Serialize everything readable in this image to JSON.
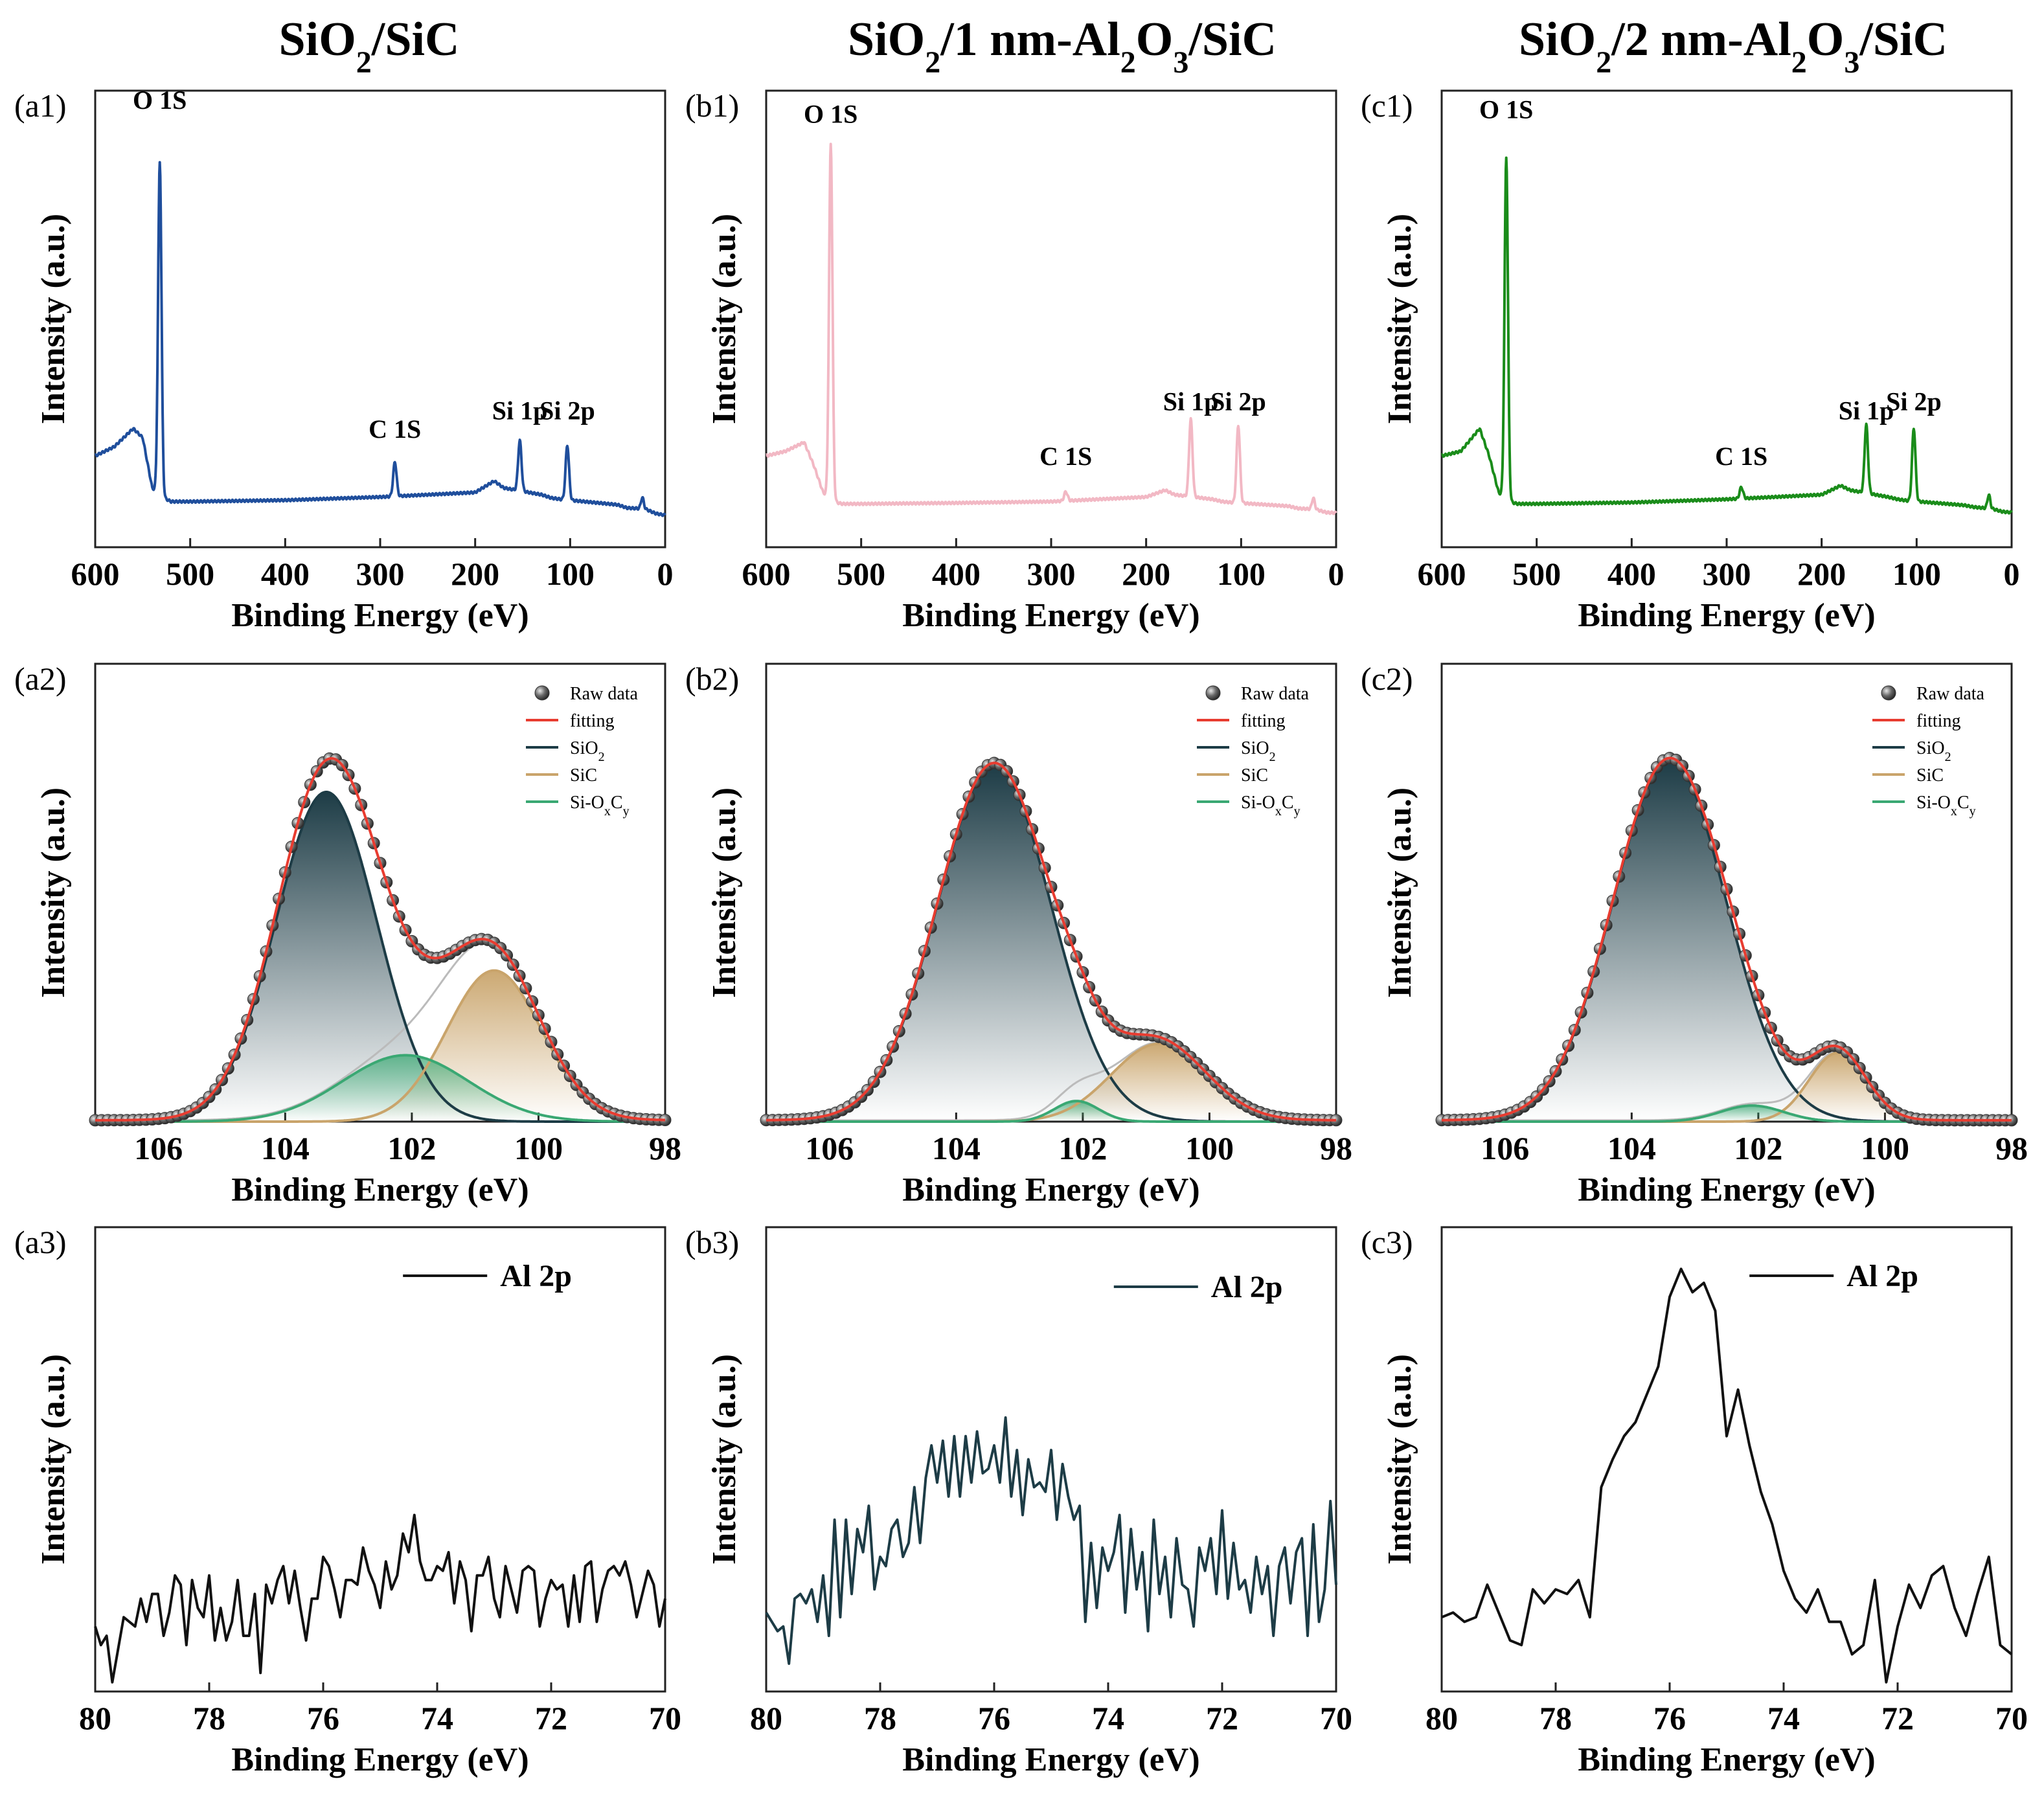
{
  "columns": [
    "SiO2/SiC",
    "SiO2/1 nm-Al2O3/SiC",
    "SiO2/2 nm-Al2O3/SiC"
  ],
  "column_titles_rich": [
    [
      [
        "SiO",
        ""
      ],
      [
        "2",
        "sub"
      ],
      [
        "/SiC",
        ""
      ]
    ],
    [
      [
        "SiO",
        ""
      ],
      [
        "2",
        "sub"
      ],
      [
        "/1 nm-Al",
        ""
      ],
      [
        "2",
        "sub"
      ],
      [
        "O",
        ""
      ],
      [
        "3",
        "sub"
      ],
      [
        "/SiC",
        ""
      ]
    ],
    [
      [
        "SiO",
        ""
      ],
      [
        "2",
        "sub"
      ],
      [
        "/2 nm-Al",
        ""
      ],
      [
        "2",
        "sub"
      ],
      [
        "O",
        ""
      ],
      [
        "3",
        "sub"
      ],
      [
        "/SiC",
        ""
      ]
    ]
  ],
  "colors": {
    "survey": [
      "#1f4e9c",
      "#f2b8c4",
      "#1a8c1a"
    ],
    "raw_marker": "#4a4a4a",
    "fitting": "#e83c30",
    "sio2": "#1d3c46",
    "sic": "#c9a46b",
    "sioxcy": "#3aa873",
    "al_line": [
      "#111111",
      "#1d3c46",
      "#111111"
    ]
  },
  "chart_data": [
    {
      "id": "a1",
      "panel_label": "(a1)",
      "type": "line",
      "row": 0,
      "col": 0,
      "xlabel": "Binding Energy (eV)",
      "ylabel": "Intensity (a.u.)",
      "xlim": [
        600,
        0
      ],
      "ylim": [
        0,
        100
      ],
      "xticks": [
        600,
        500,
        400,
        300,
        200,
        100,
        0
      ],
      "baseline": {
        "x": [
          600,
          580,
          560,
          550,
          540,
          530,
          520,
          500,
          400,
          300,
          200,
          180,
          170,
          130,
          120,
          110,
          50,
          40,
          30,
          20,
          10,
          0
        ],
        "y": [
          20,
          22,
          26,
          24,
          13,
          11,
          10,
          10,
          10.3,
          11,
          12,
          14.5,
          13,
          11.5,
          10.8,
          10.5,
          9.3,
          8.6,
          8.5,
          8.3,
          7.4,
          7
        ]
      },
      "peaks": [
        {
          "name": "O 1S",
          "center": 532,
          "height": 73,
          "width": 1.8
        },
        {
          "name": "C 1S",
          "center": 284.5,
          "height": 7.5,
          "width": 1.8
        },
        {
          "name": "Si 1p",
          "center": 153,
          "height": 11,
          "width": 1.8
        },
        {
          "name": "Si 2p",
          "center": 103,
          "height": 12,
          "width": 1.8
        },
        {
          "name": "",
          "center": 24,
          "height": 2.5,
          "width": 1.5
        }
      ],
      "annotations": [
        {
          "text": "O 1S",
          "x": 532,
          "y": 96
        },
        {
          "text": "C 1S",
          "x": 284.5,
          "y": 24
        },
        {
          "text": "Si 1p",
          "x": 153,
          "y": 28
        },
        {
          "text": "Si 2p",
          "x": 103,
          "y": 28
        }
      ]
    },
    {
      "id": "b1",
      "panel_label": "(b1)",
      "type": "line",
      "row": 0,
      "col": 1,
      "xlabel": "Binding Energy (eV)",
      "ylabel": "Intensity (a.u.)",
      "xlim": [
        600,
        0
      ],
      "ylim": [
        0,
        100
      ],
      "xticks": [
        600,
        500,
        400,
        300,
        200,
        100,
        0
      ],
      "baseline": {
        "x": [
          600,
          580,
          560,
          550,
          540,
          530,
          520,
          500,
          400,
          300,
          200,
          180,
          170,
          130,
          120,
          110,
          50,
          40,
          30,
          20,
          10,
          0
        ],
        "y": [
          20,
          21,
          23,
          18,
          12,
          10,
          9.5,
          9.5,
          9.7,
          10,
          11,
          12.5,
          11.5,
          10.5,
          10,
          9.8,
          9,
          8.5,
          8.4,
          8.2,
          7.6,
          7.5
        ]
      },
      "peaks": [
        {
          "name": "O 1S",
          "center": 532,
          "height": 78,
          "width": 1.8
        },
        {
          "name": "C 1S",
          "center": 284.5,
          "height": 2,
          "width": 1.8
        },
        {
          "name": "Si 1p",
          "center": 153,
          "height": 17,
          "width": 1.8
        },
        {
          "name": "Si 2p",
          "center": 103,
          "height": 17,
          "width": 1.8
        },
        {
          "name": "",
          "center": 24,
          "height": 2.5,
          "width": 1.5
        }
      ],
      "annotations": [
        {
          "text": "O 1S",
          "x": 532,
          "y": 93
        },
        {
          "text": "C 1S",
          "x": 284.5,
          "y": 18
        },
        {
          "text": "Si 1p",
          "x": 153,
          "y": 30
        },
        {
          "text": "Si 2p",
          "x": 103,
          "y": 30
        }
      ]
    },
    {
      "id": "c1",
      "panel_label": "(c1)",
      "type": "line",
      "row": 0,
      "col": 2,
      "xlabel": "Binding Energy (eV)",
      "ylabel": "Intensity (a.u.)",
      "xlim": [
        600,
        0
      ],
      "ylim": [
        0,
        100
      ],
      "xticks": [
        600,
        500,
        400,
        300,
        200,
        100,
        0
      ],
      "baseline": {
        "x": [
          600,
          580,
          560,
          550,
          540,
          530,
          520,
          500,
          400,
          300,
          200,
          180,
          170,
          130,
          120,
          110,
          50,
          40,
          30,
          20,
          10,
          0
        ],
        "y": [
          20,
          21,
          26,
          20,
          12,
          10,
          9.5,
          9.5,
          9.8,
          10.5,
          11.5,
          13.5,
          12.5,
          11,
          10.5,
          10.2,
          9.2,
          8.8,
          8.6,
          8.4,
          7.8,
          7.6
        ]
      },
      "peaks": [
        {
          "name": "O 1S",
          "center": 532,
          "height": 75,
          "width": 1.8
        },
        {
          "name": "C 1S",
          "center": 284.5,
          "height": 2.5,
          "width": 1.8
        },
        {
          "name": "Si 1p",
          "center": 153,
          "height": 15,
          "width": 1.8
        },
        {
          "name": "Si 2p",
          "center": 103,
          "height": 16,
          "width": 1.8
        },
        {
          "name": "",
          "center": 24,
          "height": 3,
          "width": 1.5
        }
      ],
      "annotations": [
        {
          "text": "O 1S",
          "x": 532,
          "y": 94
        },
        {
          "text": "C 1S",
          "x": 284.5,
          "y": 18
        },
        {
          "text": "Si 1p",
          "x": 153,
          "y": 28
        },
        {
          "text": "Si 2p",
          "x": 103,
          "y": 30
        }
      ]
    },
    {
      "id": "a2",
      "panel_label": "(a2)",
      "type": "line",
      "row": 1,
      "col": 0,
      "xlabel": "Binding Energy (eV)",
      "ylabel": "Intensity (a.u.)",
      "xlim": [
        107,
        98
      ],
      "ylim": [
        0,
        100
      ],
      "xticks": [
        106,
        104,
        102,
        100,
        98
      ],
      "components": [
        {
          "name": "SiO2",
          "center": 103.35,
          "height": 72,
          "sigma": 0.8
        },
        {
          "name": "SiC",
          "center": 100.7,
          "height": 33,
          "sigma": 0.75
        },
        {
          "name": "Si-OxCy",
          "center": 102.1,
          "height": 14.5,
          "sigma": 1.0
        }
      ],
      "legend": [
        "Raw data",
        "fitting",
        "SiO2",
        "SiC",
        "Si-OxCy"
      ]
    },
    {
      "id": "b2",
      "panel_label": "(b2)",
      "type": "line",
      "row": 1,
      "col": 1,
      "xlabel": "Binding Energy (eV)",
      "ylabel": "Intensity (a.u.)",
      "xlim": [
        107,
        98
      ],
      "ylim": [
        0,
        100
      ],
      "xticks": [
        106,
        104,
        102,
        100,
        98
      ],
      "components": [
        {
          "name": "SiO2",
          "center": 103.4,
          "height": 78,
          "sigma": 0.9
        },
        {
          "name": "SiC",
          "center": 100.8,
          "height": 17,
          "sigma": 0.75
        },
        {
          "name": "Si-OxCy",
          "center": 102.1,
          "height": 4.5,
          "sigma": 0.35
        }
      ],
      "legend": [
        "Raw data",
        "fitting",
        "SiO2",
        "SiC",
        "Si-OxCy"
      ]
    },
    {
      "id": "c2",
      "panel_label": "(c2)",
      "type": "line",
      "row": 1,
      "col": 2,
      "xlabel": "Binding Energy (eV)",
      "ylabel": "Intensity (a.u.)",
      "xlim": [
        107,
        98
      ],
      "ylim": [
        0,
        100
      ],
      "xticks": [
        106,
        104,
        102,
        100,
        98
      ],
      "components": [
        {
          "name": "SiO2",
          "center": 103.4,
          "height": 79,
          "sigma": 0.9
        },
        {
          "name": "SiC",
          "center": 100.75,
          "height": 15,
          "sigma": 0.45
        },
        {
          "name": "Si-OxCy",
          "center": 102.1,
          "height": 3.5,
          "sigma": 0.5
        }
      ],
      "legend": [
        "Raw data",
        "fitting",
        "SiO2",
        "SiC",
        "Si-OxCy"
      ]
    },
    {
      "id": "a3",
      "panel_label": "(a3)",
      "type": "line",
      "row": 2,
      "col": 0,
      "xlabel": "Binding Energy (eV)",
      "ylabel": "Intensity (a.u.)",
      "xlim": [
        80,
        70
      ],
      "ylim": [
        0,
        100
      ],
      "xticks": [
        80,
        78,
        76,
        74,
        72,
        70
      ],
      "legend": "Al 2p",
      "x": [
        80.0,
        79.9,
        79.8,
        79.7,
        79.6,
        79.5,
        79.4,
        79.3,
        79.2,
        79.1,
        79.0,
        78.9,
        78.8,
        78.7,
        78.6,
        78.5,
        78.4,
        78.3,
        78.2,
        78.1,
        78.0,
        77.9,
        77.8,
        77.7,
        77.6,
        77.5,
        77.4,
        77.3,
        77.2,
        77.1,
        77.0,
        76.9,
        76.8,
        76.7,
        76.6,
        76.5,
        76.4,
        76.3,
        76.2,
        76.1,
        76.0,
        75.9,
        75.8,
        75.7,
        75.6,
        75.5,
        75.4,
        75.3,
        75.2,
        75.1,
        75.0,
        74.9,
        74.8,
        74.7,
        74.6,
        74.5,
        74.4,
        74.3,
        74.2,
        74.1,
        74.0,
        73.9,
        73.8,
        73.7,
        73.6,
        73.5,
        73.4,
        73.3,
        73.2,
        73.1,
        73.0,
        72.9,
        72.8,
        72.7,
        72.6,
        72.5,
        72.4,
        72.3,
        72.2,
        72.1,
        72.0,
        71.9,
        71.8,
        71.7,
        71.6,
        71.5,
        71.4,
        71.3,
        71.2,
        71.1,
        71.0,
        70.9,
        70.8,
        70.7,
        70.6,
        70.5,
        70.4,
        70.3,
        70.2,
        70.1,
        70.0
      ],
      "y": [
        14,
        10,
        12,
        2,
        9,
        16,
        15,
        14,
        20,
        15,
        21,
        21,
        12,
        17,
        25,
        23,
        10,
        24,
        18,
        16,
        25,
        11,
        18,
        11,
        15,
        24,
        12,
        12,
        21,
        4,
        23,
        19,
        24,
        27,
        19,
        26,
        18,
        11,
        20,
        20,
        29,
        27,
        22,
        16,
        24,
        24,
        23,
        31,
        26,
        23,
        18,
        28,
        22,
        25,
        34,
        30,
        38,
        28,
        24,
        24,
        27,
        26,
        30,
        19,
        28,
        24,
        13,
        25,
        25,
        29,
        20,
        16,
        27,
        22,
        17,
        26,
        27,
        26,
        14,
        20,
        24,
        22,
        23,
        14,
        25,
        15,
        27,
        28,
        15,
        22,
        26,
        27,
        25,
        28,
        23,
        16,
        21,
        26,
        23,
        14,
        20
      ]
    },
    {
      "id": "b3",
      "panel_label": "(b3)",
      "type": "line",
      "row": 2,
      "col": 1,
      "xlabel": "Binding Energy (eV)",
      "ylabel": "Intensity (a.u.)",
      "xlim": [
        80,
        70
      ],
      "ylim": [
        0,
        100
      ],
      "xticks": [
        80,
        78,
        76,
        74,
        72,
        70
      ],
      "legend": "Al 2p",
      "x": [
        80.0,
        79.9,
        79.8,
        79.7,
        79.6,
        79.5,
        79.4,
        79.3,
        79.2,
        79.1,
        79.0,
        78.9,
        78.8,
        78.7,
        78.6,
        78.5,
        78.4,
        78.3,
        78.2,
        78.1,
        78.0,
        77.9,
        77.8,
        77.7,
        77.6,
        77.5,
        77.4,
        77.3,
        77.2,
        77.1,
        77.0,
        76.9,
        76.8,
        76.7,
        76.6,
        76.5,
        76.4,
        76.3,
        76.2,
        76.1,
        76.0,
        75.9,
        75.8,
        75.7,
        75.6,
        75.5,
        75.4,
        75.3,
        75.2,
        75.1,
        75.0,
        74.9,
        74.8,
        74.7,
        74.6,
        74.5,
        74.4,
        74.3,
        74.2,
        74.1,
        74.0,
        73.9,
        73.8,
        73.7,
        73.6,
        73.5,
        73.4,
        73.3,
        73.2,
        73.1,
        73.0,
        72.9,
        72.8,
        72.7,
        72.6,
        72.5,
        72.4,
        72.3,
        72.2,
        72.1,
        72.0,
        71.9,
        71.8,
        71.7,
        71.6,
        71.5,
        71.4,
        71.3,
        71.2,
        71.1,
        71.0,
        70.9,
        70.8,
        70.7,
        70.6,
        70.5,
        70.4,
        70.3,
        70.2,
        70.1,
        70.0
      ],
      "y": [
        17,
        15,
        13,
        14,
        6,
        20,
        21,
        19,
        22,
        15,
        25,
        12,
        37,
        16,
        37,
        21,
        35,
        30,
        40,
        22,
        29,
        27,
        35,
        37,
        29,
        32,
        44,
        32,
        46,
        53,
        45,
        54,
        42,
        55,
        42,
        55,
        45,
        56,
        47,
        48,
        53,
        45,
        59,
        42,
        52,
        38,
        50,
        44,
        45,
        43,
        52,
        37,
        49,
        42,
        37,
        40,
        15,
        32,
        18,
        31,
        26,
        30,
        38,
        17,
        35,
        22,
        30,
        13,
        37,
        21,
        29,
        16,
        33,
        23,
        22,
        14,
        31,
        26,
        33,
        21,
        39,
        20,
        32,
        22,
        24,
        17,
        29,
        21,
        27,
        12,
        27,
        31,
        19,
        30,
        33,
        12,
        36,
        15,
        22,
        41,
        23
      ]
    },
    {
      "id": "c3",
      "panel_label": "(c3)",
      "type": "line",
      "row": 2,
      "col": 2,
      "xlabel": "Binding Energy (eV)",
      "ylabel": "Intensity (a.u.)",
      "xlim": [
        80,
        70
      ],
      "ylim": [
        0,
        100
      ],
      "xticks": [
        80,
        78,
        76,
        74,
        72,
        70
      ],
      "legend": "Al 2p",
      "x": [
        80.0,
        79.8,
        79.6,
        79.4,
        79.2,
        79.0,
        78.8,
        78.6,
        78.4,
        78.2,
        78.0,
        77.8,
        77.6,
        77.4,
        77.2,
        77.0,
        76.8,
        76.6,
        76.4,
        76.2,
        76.0,
        75.8,
        75.6,
        75.4,
        75.2,
        75.0,
        74.8,
        74.6,
        74.4,
        74.2,
        74.0,
        73.8,
        73.6,
        73.4,
        73.2,
        73.0,
        72.8,
        72.6,
        72.4,
        72.2,
        72.0,
        71.8,
        71.6,
        71.4,
        71.2,
        71.0,
        70.8,
        70.6,
        70.4,
        70.2,
        70.0
      ],
      "y": [
        16,
        17,
        15,
        16,
        23,
        17,
        11,
        10,
        22,
        19,
        22,
        21,
        24,
        16,
        44,
        50,
        55,
        58,
        64,
        70,
        85,
        91,
        86,
        88,
        82,
        55,
        65,
        53,
        43,
        36,
        26,
        20,
        17,
        22,
        15,
        15,
        8,
        10,
        24,
        2,
        14,
        23,
        18,
        25,
        27,
        18,
        12,
        21,
        29,
        10,
        8
      ]
    }
  ]
}
